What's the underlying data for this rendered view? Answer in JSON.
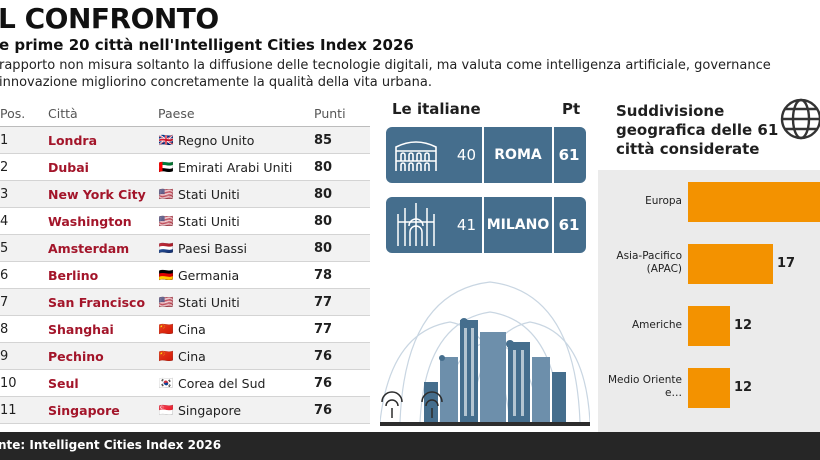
{
  "header": {
    "title": "L CONFRONTO",
    "subtitle": "e prime 20 città nell'Intelligent Cities Index 2026",
    "description": "rapporto non misura soltanto la diffusione delle tecnologie digitali, ma valuta come intelligenza artificiale, governance\ninnovazione migliorino concretamente la qualità della vita urbana."
  },
  "table": {
    "headers": {
      "pos": "Pos.",
      "city": "Città",
      "country": "Paese",
      "points": "Punti"
    },
    "rows": [
      {
        "pos": "1",
        "city": "Londra",
        "flag": "🇬🇧",
        "country": "Regno Unito",
        "points": "85"
      },
      {
        "pos": "2",
        "city": "Dubai",
        "flag": "🇦🇪",
        "country": "Emirati Arabi Uniti",
        "points": "80"
      },
      {
        "pos": "3",
        "city": "New York City",
        "flag": "🇺🇸",
        "country": "Stati Uniti",
        "points": "80"
      },
      {
        "pos": "4",
        "city": "Washington",
        "flag": "🇺🇸",
        "country": "Stati Uniti",
        "points": "80"
      },
      {
        "pos": "5",
        "city": "Amsterdam",
        "flag": "🇳🇱",
        "country": "Paesi Bassi",
        "points": "80"
      },
      {
        "pos": "6",
        "city": "Berlino",
        "flag": "🇩🇪",
        "country": "Germania",
        "points": "78"
      },
      {
        "pos": "7",
        "city": "San Francisco",
        "flag": "🇺🇸",
        "country": "Stati Uniti",
        "points": "77"
      },
      {
        "pos": "8",
        "city": "Shanghai",
        "flag": "🇨🇳",
        "country": "Cina",
        "points": "77"
      },
      {
        "pos": "9",
        "city": "Pechino",
        "flag": "🇨🇳",
        "country": "Cina",
        "points": "76"
      },
      {
        "pos": "10",
        "city": "Seul",
        "flag": "🇰🇷",
        "country": "Corea del Sud",
        "points": "76"
      },
      {
        "pos": "11",
        "city": "Singapore",
        "flag": "🇸🇬",
        "country": "Singapore",
        "points": "76"
      }
    ]
  },
  "italian": {
    "heading": "Le italiane",
    "points_heading": "Pt",
    "cards": [
      {
        "rank": "40",
        "name": "ROMA",
        "points": "61",
        "icon": "colosseum-icon"
      },
      {
        "rank": "41",
        "name": "MILANO",
        "points": "61",
        "icon": "duomo-icon"
      }
    ]
  },
  "chart_data": {
    "type": "bar",
    "title": "Suddivisione geografica delle 61 città considerate",
    "categories": [
      "Europa",
      "Asia-Pacifico (APAC)",
      "Americhe",
      "Medio Oriente e…"
    ],
    "values": [
      null,
      17,
      12,
      12
    ],
    "value_labels": [
      "",
      "17",
      "12",
      "12"
    ],
    "orientation": "horizontal",
    "bar_color": "#f39200"
  },
  "footer": {
    "source": "nte: Intelligent Cities Index 2026"
  },
  "colors": {
    "accent_red": "#a3152a",
    "card_blue": "#456e8d",
    "bar_orange": "#f39200"
  }
}
